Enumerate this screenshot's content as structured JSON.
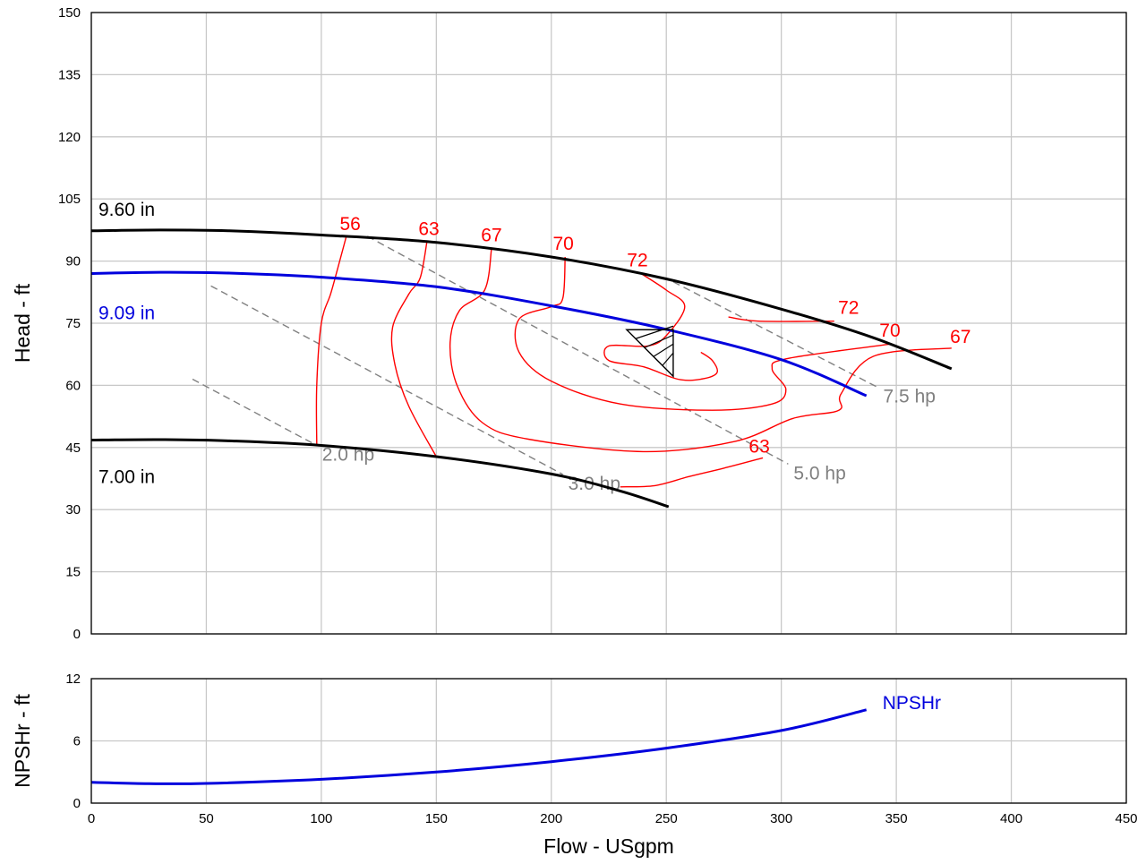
{
  "chart_data": [
    {
      "type": "line",
      "title": "",
      "xlabel": "Flow - USgpm",
      "ylabel": "Head - ft",
      "xlim": [
        0,
        450
      ],
      "ylim": [
        0,
        150
      ],
      "xticks": [
        "0",
        "50",
        "100",
        "150",
        "200",
        "250",
        "300",
        "350",
        "400",
        "450"
      ],
      "yticks": [
        "0",
        "15",
        "30",
        "45",
        "60",
        "75",
        "90",
        "105",
        "120",
        "135",
        "150"
      ],
      "grid": true,
      "series": [
        {
          "name": "9.60 in",
          "color": "#000000",
          "points": [
            [
              0,
              97.3
            ],
            [
              30,
              97.5
            ],
            [
              60,
              97.3
            ],
            [
              100,
              96.3
            ],
            [
              150,
              94.5
            ],
            [
              200,
              91.0
            ],
            [
              250,
              85.7
            ],
            [
              300,
              78.4
            ],
            [
              340,
              71.5
            ],
            [
              374,
              64.0
            ]
          ]
        },
        {
          "name": "9.09 in",
          "color": "#0000dd",
          "points": [
            [
              0,
              87.0
            ],
            [
              30,
              87.3
            ],
            [
              60,
              87.1
            ],
            [
              100,
              86.1
            ],
            [
              150,
              83.8
            ],
            [
              200,
              79.2
            ],
            [
              250,
              73.5
            ],
            [
              300,
              66.2
            ],
            [
              337,
              57.5
            ]
          ]
        },
        {
          "name": "7.00 in",
          "color": "#000000",
          "points": [
            [
              0,
              46.8
            ],
            [
              30,
              46.9
            ],
            [
              60,
              46.6
            ],
            [
              100,
              45.5
            ],
            [
              150,
              42.8
            ],
            [
              200,
              38.6
            ],
            [
              230,
              34.5
            ],
            [
              251,
              30.7
            ]
          ]
        }
      ],
      "efficiency_contours": [
        {
          "label": "56",
          "color": "#ff0000",
          "points": [
            [
              111,
              96.2
            ],
            [
              107,
              88.0
            ],
            [
              104,
              82.0
            ],
            [
              100,
              75.0
            ],
            [
              98,
              60.0
            ],
            [
              98,
              45.8
            ]
          ]
        },
        {
          "label": "63",
          "color": "#ff0000",
          "points": [
            [
              146,
              95.0
            ],
            [
              143,
              86.0
            ],
            [
              138,
              82.0
            ],
            [
              131,
              74.0
            ],
            [
              132,
              65.0
            ],
            [
              138,
              55.0
            ],
            [
              150,
              42.8
            ]
          ]
        },
        {
          "label": "63",
          "color": "#ff0000",
          "points": [
            [
              230,
              35.5
            ],
            [
              245,
              35.8
            ],
            [
              260,
              38.0
            ],
            [
              275,
              40.0
            ],
            [
              292,
              42.5
            ]
          ]
        },
        {
          "label": "67",
          "color": "#ff0000",
          "points": [
            [
              174,
              93.0
            ],
            [
              171,
              83.0
            ],
            [
              160,
              78.0
            ],
            [
              156,
              70.0
            ],
            [
              159,
              60.0
            ],
            [
              170,
              51.0
            ],
            [
              190,
              47.0
            ],
            [
              240,
              44.0
            ],
            [
              280,
              46.5
            ],
            [
              305,
              52.0
            ],
            [
              325,
              54.0
            ],
            [
              326,
              58.0
            ],
            [
              340,
              67.0
            ],
            [
              374,
              69.0
            ]
          ]
        },
        {
          "label": "70",
          "color": "#ff0000",
          "points": [
            [
              206,
              91.0
            ],
            [
              205,
              81.0
            ],
            [
              200,
              79.0
            ],
            [
              186,
              76.0
            ],
            [
              186,
              68.0
            ],
            [
              200,
              61.0
            ],
            [
              230,
              55.5
            ],
            [
              270,
              54.0
            ],
            [
              296,
              55.5
            ],
            [
              302,
              59.0
            ],
            [
              296,
              64.0
            ],
            [
              303,
              66.5
            ],
            [
              348,
              70.0
            ]
          ]
        },
        {
          "label": "72",
          "color": "#ff0000",
          "points": [
            [
              239,
              87.0
            ],
            [
              250,
              83.0
            ],
            [
              258,
              79.0
            ],
            [
              250,
              72.0
            ],
            [
              242,
              69.5
            ],
            [
              225,
              69.5
            ],
            [
              225,
              66.0
            ],
            [
              240,
              64.5
            ],
            [
              255,
              61.5
            ],
            [
              265,
              61.5
            ],
            [
              272,
              63.0
            ],
            [
              270,
              66.0
            ],
            [
              265,
              68.0
            ]
          ]
        },
        {
          "label": "72",
          "color": "#ff0000",
          "points": [
            [
              277,
              76.5
            ],
            [
              290,
              75.5
            ],
            [
              323,
              75.5
            ]
          ]
        }
      ],
      "power_lines": [
        {
          "label": "2.0 hp",
          "color": "#808080",
          "points": [
            [
              44,
              61.5
            ],
            [
              98,
              45.5
            ]
          ]
        },
        {
          "label": "3.0 hp",
          "color": "#808080",
          "points": [
            [
              52,
              84.0
            ],
            [
              205,
              38.5
            ]
          ]
        },
        {
          "label": "5.0 hp",
          "color": "#808080",
          "points": [
            [
              120,
              96.0
            ],
            [
              303,
              41.0
            ]
          ]
        },
        {
          "label": "7.5 hp",
          "color": "#808080",
          "points": [
            [
              253,
              85.0
            ],
            [
              342,
              59.5
            ]
          ]
        }
      ],
      "operating_point": {
        "flow": 253,
        "head": 73.0
      }
    },
    {
      "type": "line",
      "title": "",
      "xlabel": "Flow - USgpm",
      "ylabel": "NPSHr - ft",
      "xlim": [
        0,
        450
      ],
      "ylim": [
        0,
        12
      ],
      "xticks": [
        "0",
        "50",
        "100",
        "150",
        "200",
        "250",
        "300",
        "350",
        "400",
        "450"
      ],
      "yticks": [
        "0",
        "6",
        "12"
      ],
      "grid": true,
      "series": [
        {
          "name": "NPSHr",
          "color": "#0000dd",
          "points": [
            [
              0,
              2.0
            ],
            [
              25,
              1.88
            ],
            [
              50,
              1.9
            ],
            [
              100,
              2.3
            ],
            [
              150,
              3.0
            ],
            [
              200,
              4.0
            ],
            [
              250,
              5.3
            ],
            [
              300,
              7.0
            ],
            [
              337,
              9.0
            ]
          ]
        }
      ]
    }
  ]
}
